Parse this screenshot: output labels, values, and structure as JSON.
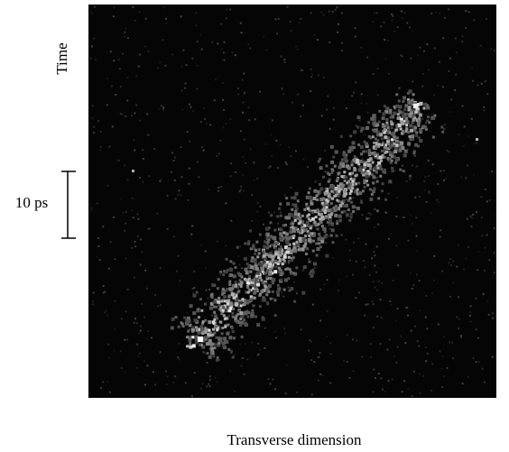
{
  "figure": {
    "y_label": "Time",
    "scale_bar_label": "10 ps",
    "x_label": "Transverse dimension"
  }
}
